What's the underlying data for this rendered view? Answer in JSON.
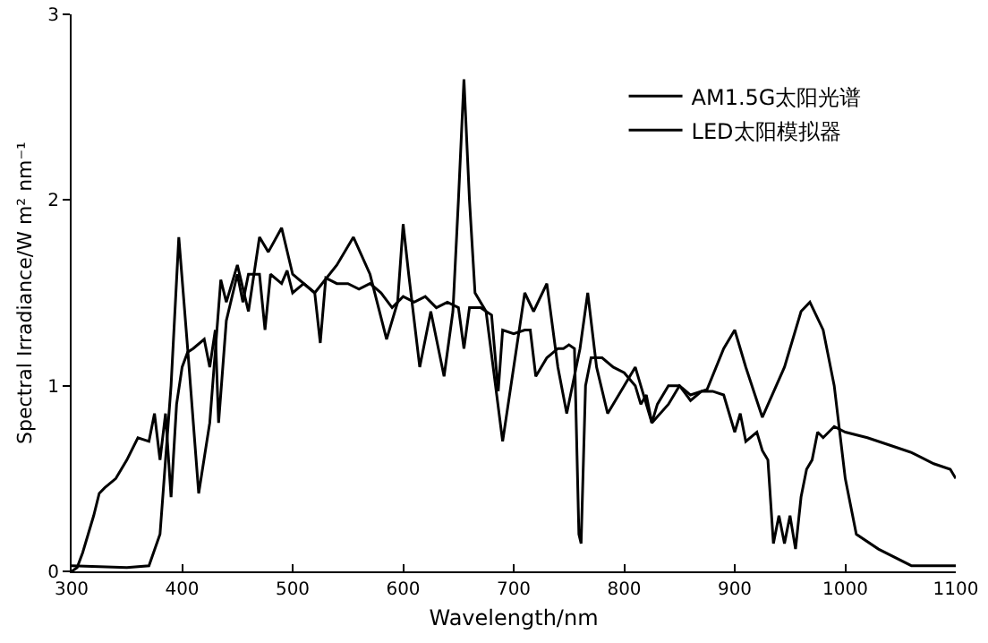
{
  "chart_data": {
    "type": "line",
    "xlabel": "Wavelength/nm",
    "ylabel": "Spectral Irradiance/W m² nm⁻¹",
    "xlim": [
      300,
      1100
    ],
    "xticks": [
      300,
      400,
      500,
      600,
      700,
      800,
      900,
      1000,
      1100
    ],
    "ylim": [
      0,
      3
    ],
    "yticks": [
      0,
      1,
      2,
      3
    ],
    "grid": false,
    "legend": "top right",
    "marker": "none",
    "line_style": "solid",
    "series": [
      {
        "name": "AM1.5G太阳光谱",
        "color": "#000000",
        "x": [
          300,
          305,
          310,
          320,
          325,
          330,
          340,
          350,
          360,
          370,
          375,
          380,
          385,
          390,
          395,
          400,
          405,
          410,
          420,
          425,
          430,
          433,
          440,
          450,
          455,
          460,
          470,
          475,
          480,
          490,
          495,
          500,
          510,
          520,
          525,
          530,
          540,
          550,
          560,
          570,
          580,
          590,
          600,
          610,
          620,
          630,
          640,
          650,
          655,
          660,
          670,
          680,
          686,
          690,
          700,
          710,
          715,
          720,
          730,
          740,
          745,
          750,
          755,
          759,
          761,
          765,
          770,
          780,
          790,
          800,
          810,
          815,
          820,
          825,
          830,
          840,
          850,
          860,
          870,
          880,
          890,
          900,
          905,
          910,
          920,
          925,
          930,
          935,
          940,
          945,
          950,
          955,
          960,
          965,
          970,
          975,
          980,
          990,
          1000,
          1020,
          1040,
          1060,
          1080,
          1095,
          1100
        ],
        "values": [
          0,
          0.02,
          0.1,
          0.3,
          0.42,
          0.45,
          0.5,
          0.6,
          0.72,
          0.7,
          0.85,
          0.6,
          0.85,
          0.4,
          0.9,
          1.1,
          1.18,
          1.2,
          1.25,
          1.1,
          1.3,
          0.8,
          1.35,
          1.6,
          1.45,
          1.6,
          1.6,
          1.3,
          1.6,
          1.55,
          1.62,
          1.5,
          1.55,
          1.5,
          1.23,
          1.58,
          1.55,
          1.55,
          1.52,
          1.55,
          1.5,
          1.42,
          1.48,
          1.45,
          1.48,
          1.42,
          1.45,
          1.42,
          1.2,
          1.42,
          1.42,
          1.38,
          0.97,
          1.3,
          1.28,
          1.3,
          1.3,
          1.05,
          1.15,
          1.2,
          1.2,
          1.22,
          1.2,
          0.2,
          0.15,
          1.0,
          1.15,
          1.15,
          1.1,
          1.07,
          1.0,
          0.9,
          0.95,
          0.8,
          0.9,
          1.0,
          1.0,
          0.92,
          0.97,
          0.97,
          0.95,
          0.75,
          0.85,
          0.7,
          0.75,
          0.65,
          0.6,
          0.15,
          0.3,
          0.15,
          0.3,
          0.12,
          0.4,
          0.55,
          0.6,
          0.75,
          0.72,
          0.78,
          0.75,
          0.72,
          0.68,
          0.64,
          0.58,
          0.55,
          0.5
        ]
      },
      {
        "name": "LED太阳模拟器",
        "color": "#000000",
        "x": [
          300,
          350,
          370,
          380,
          390,
          397,
          405,
          415,
          425,
          435,
          440,
          450,
          460,
          470,
          478,
          490,
          500,
          520,
          540,
          555,
          570,
          585,
          595,
          600,
          605,
          615,
          625,
          637,
          645,
          650,
          655,
          660,
          665,
          675,
          690,
          700,
          710,
          718,
          730,
          740,
          748,
          760,
          767,
          775,
          785,
          800,
          810,
          825,
          840,
          850,
          860,
          875,
          890,
          900,
          910,
          925,
          945,
          960,
          968,
          980,
          990,
          1000,
          1010,
          1030,
          1060,
          1100
        ],
        "values": [
          0.03,
          0.02,
          0.03,
          0.2,
          1.0,
          1.8,
          1.2,
          0.42,
          0.8,
          1.57,
          1.45,
          1.65,
          1.4,
          1.8,
          1.72,
          1.85,
          1.6,
          1.5,
          1.65,
          1.8,
          1.6,
          1.25,
          1.45,
          1.87,
          1.6,
          1.1,
          1.4,
          1.05,
          1.4,
          2.0,
          2.65,
          2.0,
          1.5,
          1.4,
          0.7,
          1.1,
          1.5,
          1.4,
          1.55,
          1.1,
          0.85,
          1.2,
          1.5,
          1.1,
          0.85,
          1.0,
          1.1,
          0.8,
          0.9,
          1.0,
          0.95,
          0.98,
          1.2,
          1.3,
          1.1,
          0.83,
          1.1,
          1.4,
          1.45,
          1.3,
          1.0,
          0.5,
          0.2,
          0.12,
          0.03,
          0.03
        ]
      }
    ]
  }
}
